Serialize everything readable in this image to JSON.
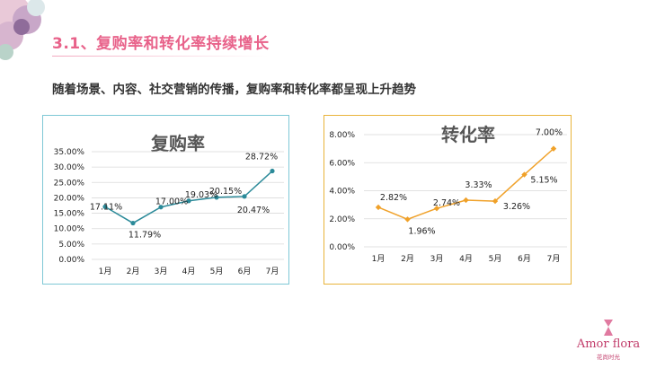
{
  "header": {
    "title": "3.1、复购率和转化率持续增长",
    "subtitle": "随着场景、内容、社交营销的传播，复购率和转化率都呈现上升趋势"
  },
  "logo": {
    "name": "Amor flora",
    "sub": "花尚时光"
  },
  "chart_data": [
    {
      "type": "line",
      "title": "复购率",
      "categories": [
        "1月",
        "2月",
        "3月",
        "4月",
        "5月",
        "6月",
        "7月"
      ],
      "series": [
        {
          "values": [
            17.11,
            11.79,
            17.0,
            19.03,
            20.15,
            20.47,
            28.72
          ],
          "labels": [
            "17.11%",
            "11.79%",
            "17.00%",
            "19.03%",
            "20.15%",
            "20.47%",
            "28.72%"
          ]
        }
      ],
      "yticks": [
        "35.00%",
        "30.00%",
        "25.00%",
        "20.00%",
        "15.00%",
        "10.00%",
        "5.00%",
        "0.00%"
      ],
      "ylim": [
        0,
        35
      ],
      "grid": true,
      "color": "#2b8a99"
    },
    {
      "type": "line",
      "title": "转化率",
      "categories": [
        "1月",
        "2月",
        "3月",
        "4月",
        "5月",
        "6月",
        "7月"
      ],
      "series": [
        {
          "values": [
            2.82,
            1.96,
            2.74,
            3.33,
            3.26,
            5.15,
            7.0
          ],
          "labels": [
            "2.82%",
            "1.96%",
            "2.74%",
            "3.33%",
            "3.26%",
            "5.15%",
            "7.00%"
          ]
        }
      ],
      "yticks": [
        "8.00%",
        "6.00%",
        "4.00%",
        "2.00%",
        "0.00%"
      ],
      "ylim": [
        0,
        8
      ],
      "grid": true,
      "color": "#f0a129"
    }
  ]
}
